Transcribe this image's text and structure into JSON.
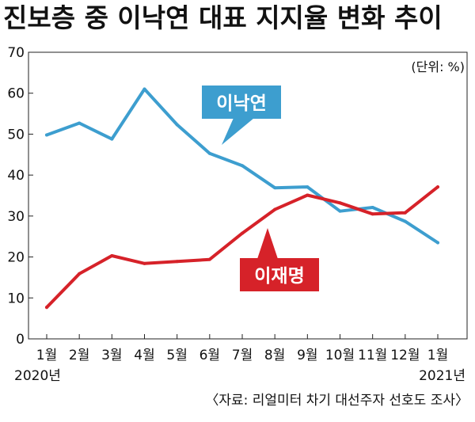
{
  "chart_data": {
    "type": "line",
    "title": "진보층 중 이낙연 대표 지지율 변화 추이",
    "unit_label": "(단위: %)",
    "source": "〈자료: 리얼미터 차기 대선주자 선호도 조사〉",
    "categories": [
      "1월",
      "2월",
      "3월",
      "4월",
      "5월",
      "6월",
      "7월",
      "8월",
      "9월",
      "10월",
      "11월",
      "12월",
      "1월"
    ],
    "year_start_label": "2020년",
    "year_end_label": "2021년",
    "ylim": [
      0,
      70
    ],
    "yticks": [
      "0",
      "10",
      "20",
      "30",
      "40",
      "50",
      "60",
      "70"
    ],
    "grid": false,
    "series": [
      {
        "name": "이낙연",
        "color": "#3d9ecf",
        "values": [
          49.8,
          52.7,
          48.8,
          61.0,
          52.3,
          45.3,
          42.3,
          36.9,
          37.1,
          31.2,
          32.1,
          28.7,
          23.5
        ]
      },
      {
        "name": "이재명",
        "color": "#d62229",
        "values": [
          7.7,
          15.9,
          20.3,
          18.4,
          18.9,
          19.4,
          25.8,
          31.6,
          35.1,
          33.2,
          30.5,
          30.8,
          37.1
        ]
      }
    ]
  }
}
